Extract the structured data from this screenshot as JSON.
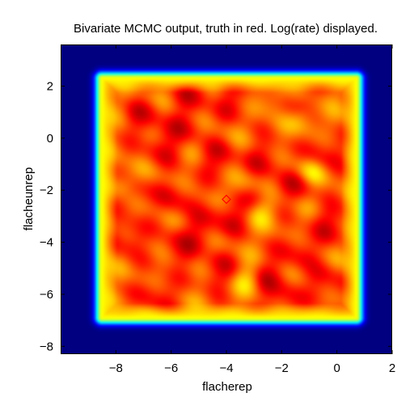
{
  "chart_data": {
    "type": "heatmap",
    "title": "Bivariate MCMC output, truth in red. Log(rate) displayed.",
    "xlabel": "flacherep",
    "ylabel": "flacheunrep",
    "xlim": [
      -10,
      2
    ],
    "ylim": [
      -8.3,
      3.6
    ],
    "xticks": [
      -8,
      -6,
      -4,
      -2,
      0,
      2
    ],
    "yticks": [
      -8,
      -6,
      -4,
      -2,
      0,
      2
    ],
    "xtick_labels": [
      "−8",
      "−6",
      "−4",
      "−2",
      "0",
      "2"
    ],
    "ytick_labels": [
      "−8",
      "−6",
      "−4",
      "−2",
      "0",
      "2"
    ],
    "colormap": "jet",
    "background_color": "#00008f",
    "support_region": {
      "x": [
        -8.5,
        0.7
      ],
      "y": [
        -6.9,
        2.3
      ]
    },
    "hotspots": [
      {
        "x": -7.0,
        "y": 0.8,
        "w": 1.0
      },
      {
        "x": -6.3,
        "y": -0.3,
        "w": 1.0
      },
      {
        "x": -5.2,
        "y": 1.7,
        "w": 1.0
      },
      {
        "x": -4.3,
        "y": -0.8,
        "w": 1.1
      },
      {
        "x": -3.9,
        "y": -3.0,
        "w": 1.1
      },
      {
        "x": -3.7,
        "y": 1.4,
        "w": 0.9
      },
      {
        "x": -2.6,
        "y": -0.8,
        "w": 1.0
      },
      {
        "x": -1.5,
        "y": -1.8,
        "w": 1.0
      },
      {
        "x": -0.4,
        "y": -0.5,
        "w": 1.0
      },
      {
        "x": -0.2,
        "y": -3.3,
        "w": 1.1
      },
      {
        "x": -1.4,
        "y": -4.3,
        "w": 1.0
      },
      {
        "x": -2.5,
        "y": -5.3,
        "w": 1.0
      },
      {
        "x": -4.3,
        "y": -5.1,
        "w": 1.0
      },
      {
        "x": -5.7,
        "y": -4.2,
        "w": 1.1
      },
      {
        "x": -7.6,
        "y": -3.8,
        "w": 1.1
      },
      {
        "x": -6.5,
        "y": -6.0,
        "w": 1.0
      },
      {
        "x": -7.4,
        "y": -2.1,
        "w": 0.9
      },
      {
        "x": -5.8,
        "y": -2.3,
        "w": 1.0
      },
      {
        "x": -4.9,
        "y": -3.5,
        "w": 0.9
      },
      {
        "x": -2.0,
        "y": -6.1,
        "w": 0.9
      },
      {
        "x": -0.4,
        "y": -5.6,
        "w": 1.0
      },
      {
        "x": -3.0,
        "y": -2.2,
        "w": 0.8
      },
      {
        "x": -5.5,
        "y": 0.5,
        "w": 0.9
      },
      {
        "x": -1.5,
        "y": 1.3,
        "w": 0.8
      }
    ],
    "coldspots": [
      {
        "x": -7.7,
        "y": -1.8,
        "w": 1.0
      },
      {
        "x": -1.0,
        "y": -1.3,
        "w": 1.0
      },
      {
        "x": -3.2,
        "y": -5.4,
        "w": 1.0
      },
      {
        "x": -2.7,
        "y": -2.8,
        "w": 0.9
      },
      {
        "x": -1.2,
        "y": 0.8,
        "w": 0.9
      },
      {
        "x": -3.3,
        "y": -1.9,
        "w": 0.8
      },
      {
        "x": -2.3,
        "y": 1.5,
        "w": 0.7
      }
    ],
    "truth": {
      "x": -4.0,
      "y": -2.35,
      "color": "#ff0000",
      "marker": "diamond"
    }
  }
}
